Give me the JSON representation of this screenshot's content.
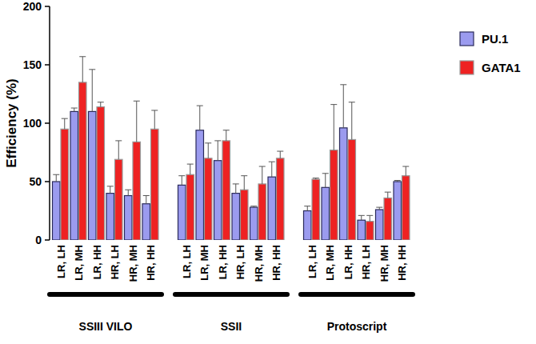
{
  "chart_data": {
    "type": "bar",
    "y_label": "Efficiency (%)",
    "categories": [
      "LR, LH",
      "LR, MH",
      "LR, HH",
      "HR, LH",
      "HR, MH",
      "HR, HH",
      "LR, LH",
      "LR, MH",
      "LR, HH",
      "HR, LH",
      "HR, MH",
      "HR, HH",
      "LR, LH",
      "LR, MH",
      "LR, HH",
      "HR, LH",
      "HR, MH",
      "HR, HH"
    ],
    "group_labels": [
      "SSIII VILO",
      "SSII",
      "Protoscript"
    ],
    "series": [
      {
        "name": "PU.1",
        "color": "#9b9bef",
        "values": [
          50,
          110,
          110,
          40,
          38,
          31,
          47,
          94,
          68,
          40,
          28,
          54,
          25,
          45,
          96,
          17,
          26,
          50
        ],
        "errors": [
          6,
          3,
          36,
          6,
          5,
          7,
          8,
          21,
          17,
          8,
          1,
          13,
          4,
          12,
          37,
          4,
          2,
          1
        ]
      },
      {
        "name": "GATA1",
        "color": "#ee2222",
        "values": [
          95,
          135,
          114,
          69,
          84,
          95,
          56,
          70,
          85,
          43,
          48,
          70,
          52,
          77,
          86,
          16,
          36,
          55
        ],
        "errors": [
          9,
          22,
          4,
          16,
          35,
          16,
          9,
          13,
          9,
          12,
          15,
          6,
          1,
          39,
          32,
          5,
          5,
          8
        ]
      }
    ],
    "ylim": [
      0,
      200
    ],
    "yticks": [
      0,
      50,
      100,
      150,
      200
    ],
    "legend": "top-right"
  }
}
